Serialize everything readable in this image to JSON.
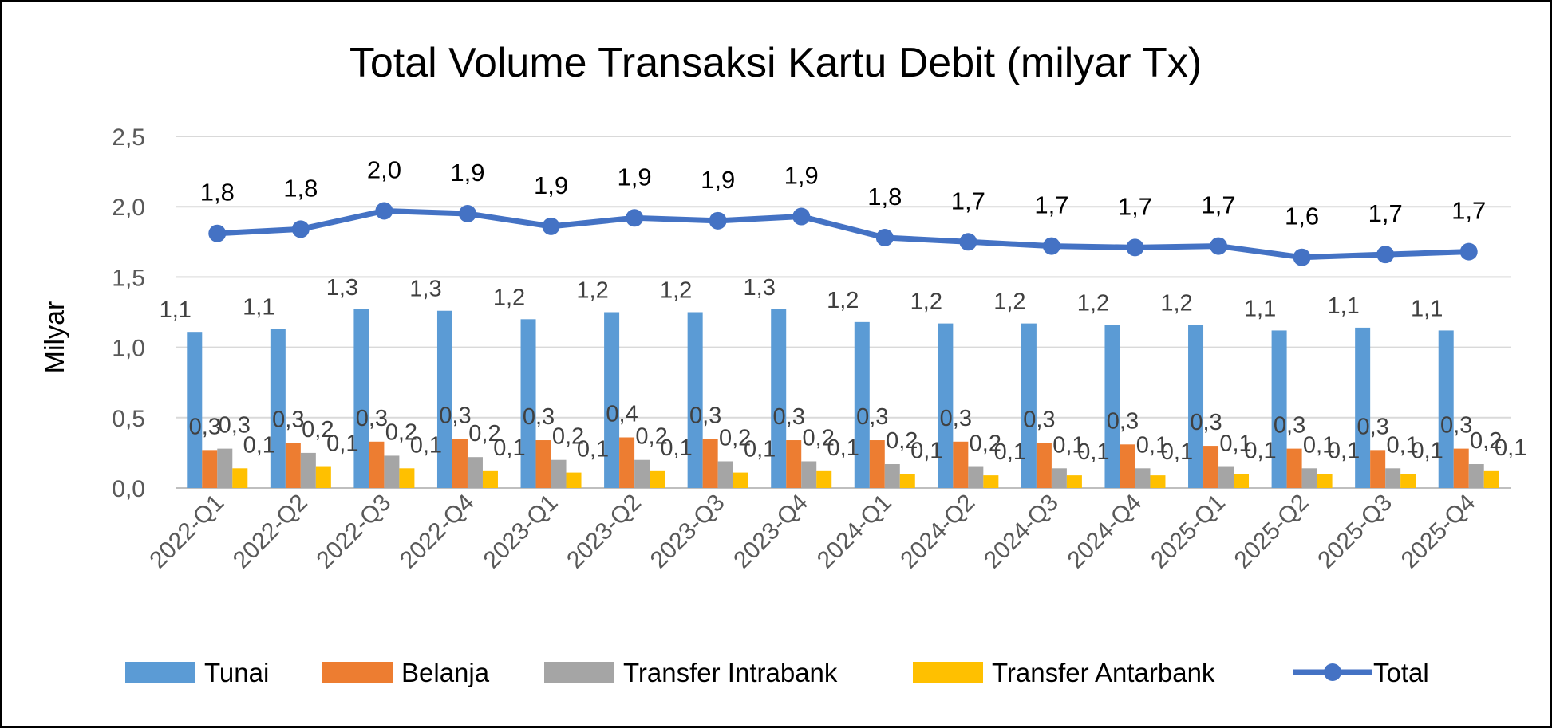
{
  "chart_data": {
    "type": "bar",
    "title": "Total Volume Transaksi Kartu Debit (milyar Tx)",
    "xlabel": "",
    "ylabel": "Milyar",
    "ylim": [
      0,
      2.5
    ],
    "yticks": [
      "0,0",
      "0,5",
      "1,0",
      "1,5",
      "2,0",
      "2,5"
    ],
    "grid": true,
    "legend_position": "bottom",
    "categories": [
      "2022-Q1",
      "2022-Q2",
      "2022-Q3",
      "2022-Q4",
      "2023-Q1",
      "2023-Q2",
      "2023-Q3",
      "2023-Q4",
      "2024-Q1",
      "2024-Q2",
      "2024-Q3",
      "2024-Q4",
      "2025-Q1",
      "2025-Q2",
      "2025-Q3",
      "2025-Q4"
    ],
    "series": [
      {
        "name": "Tunai",
        "kind": "bar",
        "color": "#5B9BD5",
        "values": [
          1.11,
          1.13,
          1.27,
          1.26,
          1.2,
          1.25,
          1.25,
          1.27,
          1.18,
          1.17,
          1.17,
          1.16,
          1.16,
          1.12,
          1.14,
          1.12
        ],
        "labels": [
          "1,1",
          "1,1",
          "1,3",
          "1,3",
          "1,2",
          "1,2",
          "1,2",
          "1,3",
          "1,2",
          "1,2",
          "1,2",
          "1,2",
          "1,2",
          "1,1",
          "1,1",
          "1,1"
        ]
      },
      {
        "name": "Belanja",
        "kind": "bar",
        "color": "#ED7D31",
        "values": [
          0.27,
          0.32,
          0.33,
          0.35,
          0.34,
          0.36,
          0.35,
          0.34,
          0.34,
          0.33,
          0.32,
          0.31,
          0.3,
          0.28,
          0.27,
          0.28
        ],
        "labels": [
          "0,3",
          "0,3",
          "0,3",
          "0,3",
          "0,3",
          "0,4",
          "0,3",
          "0,3",
          "0,3",
          "0,3",
          "0,3",
          "0,3",
          "0,3",
          "0,3",
          "0,3",
          "0,3"
        ]
      },
      {
        "name": "Transfer Intrabank",
        "kind": "bar",
        "color": "#A5A5A5",
        "values": [
          0.28,
          0.25,
          0.23,
          0.22,
          0.2,
          0.2,
          0.19,
          0.19,
          0.17,
          0.15,
          0.14,
          0.14,
          0.15,
          0.14,
          0.14,
          0.17
        ],
        "labels": [
          "0,3",
          "0,2",
          "0,2",
          "0,2",
          "0,2",
          "0,2",
          "0,2",
          "0,2",
          "0,2",
          "0,2",
          "0,1",
          "0,1",
          "0,1",
          "0,1",
          "0,1",
          "0,2"
        ]
      },
      {
        "name": "Transfer Antarbank",
        "kind": "bar",
        "color": "#FFC000",
        "values": [
          0.14,
          0.15,
          0.14,
          0.12,
          0.11,
          0.12,
          0.11,
          0.12,
          0.1,
          0.09,
          0.09,
          0.09,
          0.1,
          0.1,
          0.1,
          0.12
        ],
        "labels": [
          "0,1",
          "0,1",
          "0,1",
          "0,1",
          "0,1",
          "0,1",
          "0,1",
          "0,1",
          "0,1",
          "0,1",
          "0,1",
          "0,1",
          "0,1",
          "0,1",
          "0,1",
          "0,1"
        ]
      },
      {
        "name": "Total",
        "kind": "line",
        "color": "#4472C4",
        "values": [
          1.81,
          1.84,
          1.97,
          1.95,
          1.86,
          1.92,
          1.9,
          1.93,
          1.78,
          1.75,
          1.72,
          1.71,
          1.72,
          1.64,
          1.66,
          1.68
        ],
        "labels": [
          "1,8",
          "1,8",
          "2,0",
          "1,9",
          "1,9",
          "1,9",
          "1,9",
          "1,9",
          "1,8",
          "1,7",
          "1,7",
          "1,7",
          "1,7",
          "1,6",
          "1,7",
          "1,7"
        ]
      }
    ]
  }
}
